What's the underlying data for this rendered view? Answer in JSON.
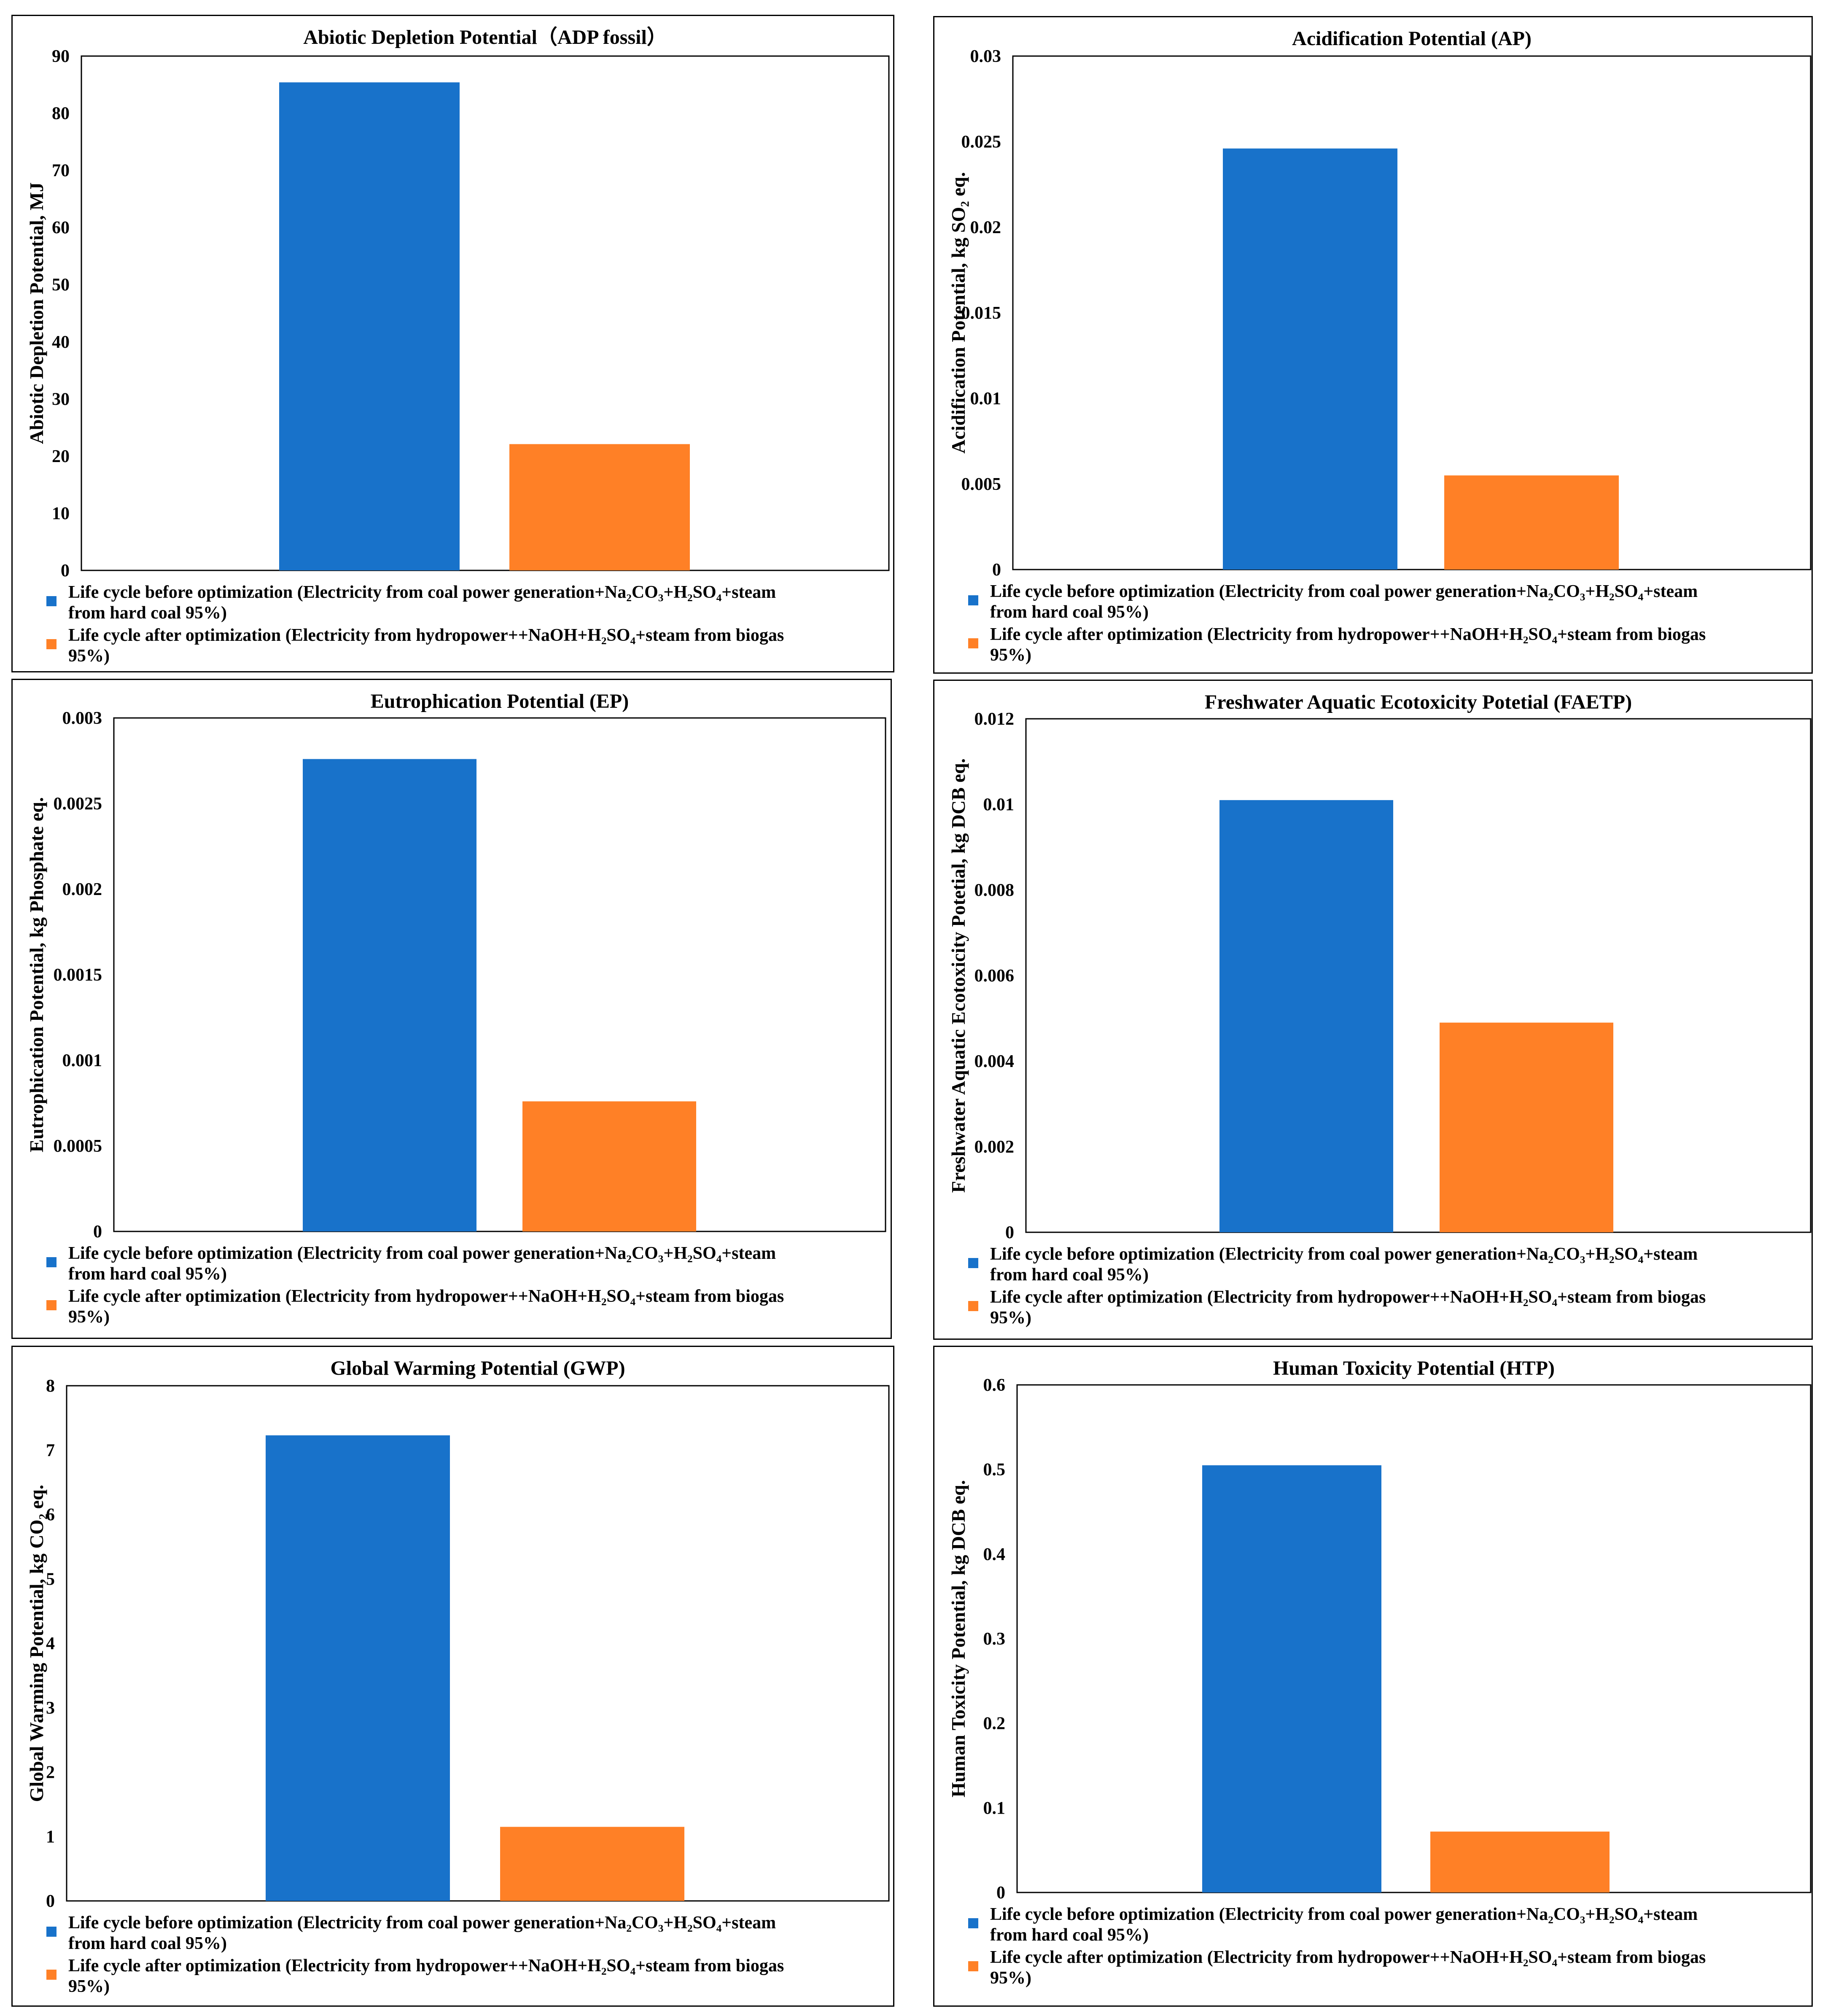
{
  "legend": {
    "before_line1": "Life cycle before optimization (Electricity from coal power generation+Na₂CO₃+H₂SO₄+steam",
    "before_line2": "from hard coal 95%)",
    "after_line1": "Life cycle after optimization (Electricity from hydropower++NaOH+H₂SO₄+steam from biogas",
    "after_line2": "95%)"
  },
  "colors": {
    "before": "#1872CA",
    "after": "#FF8026"
  },
  "chart_data": [
    {
      "type": "bar",
      "title": "Abiotic Depletion Potential（ADP fossil）",
      "ylabel": "Abiotic Depletion Potential, MJ",
      "ylim": [
        0,
        90
      ],
      "yticks": [
        "0",
        "10",
        "20",
        "30",
        "40",
        "50",
        "60",
        "70",
        "80",
        "90"
      ],
      "series": [
        {
          "name": "Life cycle before optimization (Electricity from coal power generation+Na₂CO₃+H₂SO₄+steam from hard coal 95%)",
          "values": [
            85.4
          ]
        },
        {
          "name": "Life cycle after optimization (Electricity from hydropower++NaOH+H₂SO₄+steam from biogas 95%)",
          "values": [
            22.1
          ]
        }
      ],
      "grid": false,
      "legend_position": "bottom"
    },
    {
      "type": "bar",
      "title": "Acidification Potential (AP)",
      "ylabel": "Acidification Potential, kg SO₂ eq.",
      "ylim": [
        0,
        0.03
      ],
      "yticks": [
        "0",
        "0.005",
        "0.01",
        "0.015",
        "0.02",
        "0.025",
        "0.03"
      ],
      "series": [
        {
          "name": "Life cycle before optimization (Electricity from coal power generation+Na₂CO₃+H₂SO₄+steam from hard coal 95%)",
          "values": [
            0.0246
          ]
        },
        {
          "name": "Life cycle after optimization (Electricity from hydropower++NaOH+H₂SO₄+steam from biogas 95%)",
          "values": [
            0.0055
          ]
        }
      ],
      "grid": false,
      "legend_position": "bottom"
    },
    {
      "type": "bar",
      "title": "Eutrophication Potential (EP)",
      "ylabel": "Eutrophication Potential, kg Phosphate eq.",
      "ylim": [
        0,
        0.003
      ],
      "yticks": [
        "0",
        "0.0005",
        "0.001",
        "0.0015",
        "0.002",
        "0.0025",
        "0.003"
      ],
      "series": [
        {
          "name": "Life cycle before optimization (Electricity from coal power generation+Na₂CO₃+H₂SO₄+steam from hard coal 95%)",
          "values": [
            0.00276
          ]
        },
        {
          "name": "Life cycle after optimization (Electricity from hydropower++NaOH+H₂SO₄+steam from biogas 95%)",
          "values": [
            0.00076
          ]
        }
      ],
      "grid": false,
      "legend_position": "bottom"
    },
    {
      "type": "bar",
      "title": "Freshwater Aquatic Ecotoxicity Potetial (FAETP)",
      "ylabel": "Freshwater Aquatic Ecotoxicity Potetial, kg DCB eq.",
      "ylim": [
        0,
        0.012
      ],
      "yticks": [
        "0",
        "0.002",
        "0.004",
        "0.006",
        "0.008",
        "0.01",
        "0.012"
      ],
      "series": [
        {
          "name": "Life cycle before optimization (Electricity from coal power generation+Na₂CO₃+H₂SO₄+steam from hard coal 95%)",
          "values": [
            0.0101
          ]
        },
        {
          "name": "Life cycle after optimization (Electricity from hydropower++NaOH+H₂SO₄+steam from biogas 95%)",
          "values": [
            0.0049
          ]
        }
      ],
      "grid": false,
      "legend_position": "bottom"
    },
    {
      "type": "bar",
      "title": "Global Warming Potential (GWP)",
      "ylabel": "Global Warming Potential, kg CO₂ eq.",
      "ylim": [
        0,
        8
      ],
      "yticks": [
        "0",
        "1",
        "2",
        "3",
        "4",
        "5",
        "6",
        "7",
        "8"
      ],
      "series": [
        {
          "name": "Life cycle before optimization (Electricity from coal power generation+Na₂CO₃+H₂SO₄+steam from hard coal 95%)",
          "values": [
            7.23
          ]
        },
        {
          "name": "Life cycle after optimization (Electricity from hydropower++NaOH+H₂SO₄+steam from biogas 95%)",
          "values": [
            1.15
          ]
        }
      ],
      "grid": false,
      "legend_position": "bottom"
    },
    {
      "type": "bar",
      "title": "Human Toxicity Potential (HTP)",
      "ylabel": "Human Toxicity Potential, kg DCB eq.",
      "ylim": [
        0,
        0.6
      ],
      "yticks": [
        "0",
        "0.1",
        "0.2",
        "0.3",
        "0.4",
        "0.5",
        "0.6"
      ],
      "series": [
        {
          "name": "Life cycle before optimization (Electricity from coal power generation+Na₂CO₃+H₂SO₄+steam from hard coal 95%)",
          "values": [
            0.505
          ]
        },
        {
          "name": "Life cycle after optimization (Electricity from hydropower++NaOH+H₂SO₄+steam from biogas 95%)",
          "values": [
            0.072
          ]
        }
      ],
      "grid": false,
      "legend_position": "bottom"
    }
  ]
}
